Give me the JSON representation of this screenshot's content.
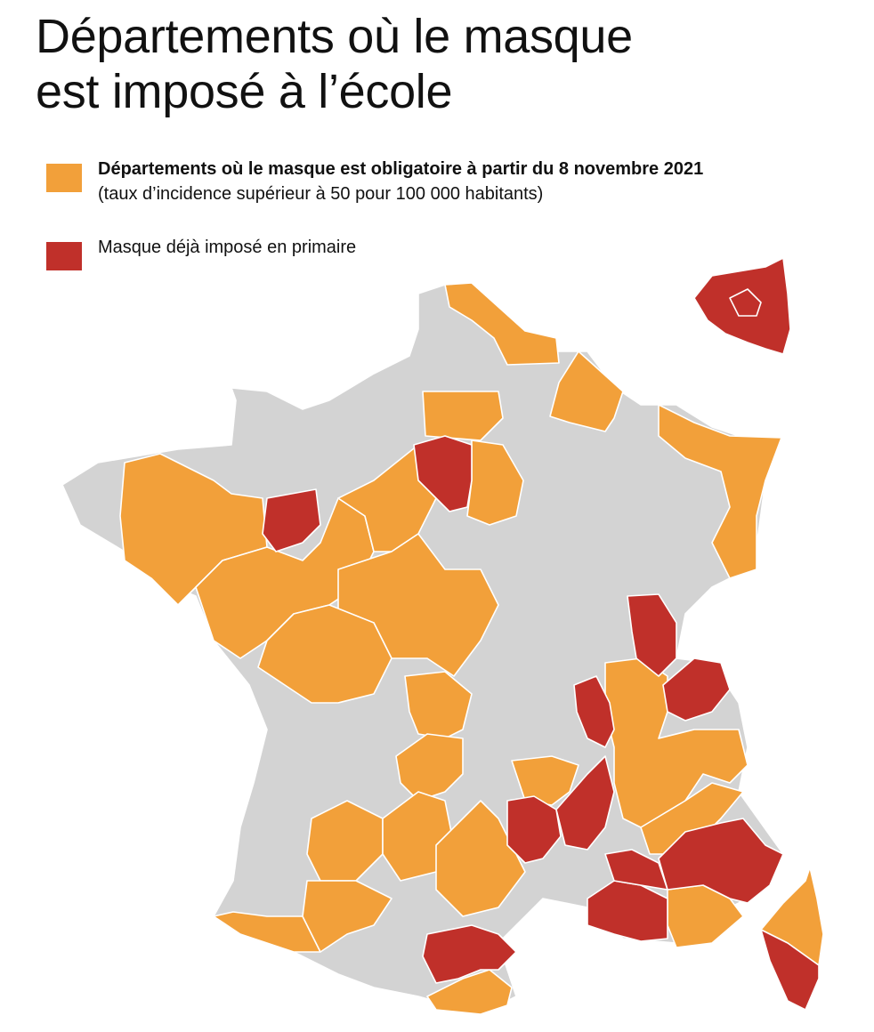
{
  "title": {
    "line1": "Départements où le masque",
    "line2": "est imposé à l’école"
  },
  "legend": {
    "items": [
      {
        "label": "Départements où le masque est obligatoire à partir du 8 novembre 2021",
        "sublabel": "(taux d’incidence supérieur à 50 pour 100 000 habitants)",
        "color": "#F2A03A"
      },
      {
        "label": "Masque déjà imposé en primaire",
        "color": "#C0302A"
      }
    ]
  },
  "map": {
    "colors": {
      "none": "#D3D3D3",
      "mandatory_from_nov_8": "#F2A03A",
      "already_primary": "#C0302A",
      "border": "#ffffff"
    },
    "inset": "Île-de-France"
  }
}
